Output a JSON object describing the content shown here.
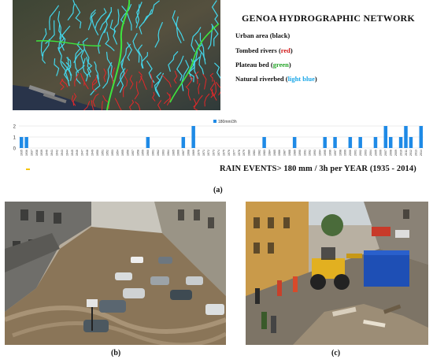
{
  "figure": {
    "panel_labels": {
      "a": "(a)",
      "b": "(b)",
      "c": "(c)"
    }
  },
  "legend": {
    "title": "GENOA HYDROGRAPHIC NETWORK",
    "items": [
      {
        "prefix": "Urban area (black)",
        "open": "",
        "color_word": "",
        "close": ""
      },
      {
        "prefix": "Tombed rivers ",
        "open": "(",
        "color_word": "red",
        "close": ")"
      },
      {
        "prefix": "Plateau bed ",
        "open": "(",
        "color_word": "green",
        "close": ")"
      },
      {
        "prefix": "Natural riverbed ",
        "open": "(",
        "color_word": "light blue",
        "close": ")"
      }
    ],
    "colors": {
      "red": "#d11a1a",
      "green": "#27a52a",
      "light_blue": "#1da8e8",
      "urban": "#111111"
    }
  },
  "chart_data": {
    "type": "bar",
    "title": "RAIN EVENTS> 180 mm / 3h per YEAR (1935 - 2014)",
    "legend_label": "180mm/3h",
    "legend_position": "top-center",
    "bar_color": "#1e8ae6",
    "ylim": [
      0,
      2
    ],
    "yticks": [
      0,
      1,
      2
    ],
    "grid": true,
    "categories": [
      "1935",
      "1936",
      "1937",
      "1938",
      "1939",
      "1940",
      "1941",
      "1942",
      "1943",
      "1944",
      "1945",
      "1946",
      "1947",
      "1948",
      "1949",
      "1950",
      "1951",
      "1952",
      "1953",
      "1954",
      "1955",
      "1956",
      "1957",
      "1958",
      "1959",
      "1960",
      "1961",
      "1962",
      "1963",
      "1964",
      "1965",
      "1966",
      "1967",
      "1968",
      "1969",
      "1970",
      "1971",
      "1972",
      "1973",
      "1974",
      "1975",
      "1976",
      "1977",
      "1978",
      "1979",
      "1980",
      "1981",
      "1982",
      "1983",
      "1984",
      "1985",
      "1986",
      "1987",
      "1988",
      "1989",
      "1990",
      "1991",
      "1992",
      "1993",
      "1994",
      "1995",
      "1996",
      "1997",
      "1998",
      "1999",
      "2000",
      "2001",
      "2002",
      "2003",
      "2004",
      "2005",
      "2006",
      "2007",
      "2008",
      "2009",
      "2010",
      "2011",
      "2012",
      "2013",
      "2014"
    ],
    "values": [
      1,
      1,
      0,
      0,
      0,
      0,
      0,
      0,
      0,
      0,
      0,
      0,
      0,
      0,
      0,
      0,
      0,
      0,
      0,
      0,
      0,
      0,
      0,
      0,
      0,
      1,
      0,
      0,
      0,
      0,
      0,
      0,
      1,
      0,
      2,
      0,
      0,
      0,
      0,
      0,
      0,
      0,
      0,
      0,
      0,
      0,
      0,
      0,
      1,
      0,
      0,
      0,
      0,
      0,
      1,
      0,
      0,
      0,
      0,
      0,
      1,
      0,
      1,
      0,
      0,
      1,
      0,
      1,
      0,
      0,
      1,
      0,
      2,
      1,
      0,
      1,
      2,
      1,
      0,
      2
    ]
  },
  "legend_icon_color": "#f5c400"
}
